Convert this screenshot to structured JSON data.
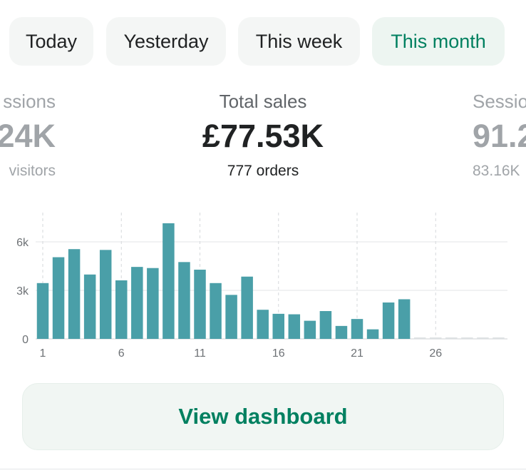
{
  "tabs": [
    {
      "label": "Today"
    },
    {
      "label": "Yesterday"
    },
    {
      "label": "This week"
    },
    {
      "label": "This month",
      "active": true
    }
  ],
  "metrics": {
    "left": {
      "label": "ssions",
      "value": "24K",
      "sub": "visitors"
    },
    "main": {
      "label": "Total sales",
      "value": "£77.53K",
      "sub": "777 orders"
    },
    "right": {
      "label": "Sessio",
      "value": "91.2",
      "sub": "83.16K"
    }
  },
  "colors": {
    "accent": "#008060",
    "bar": "#4a9fa8",
    "future": "#dde1e3"
  },
  "chart_data": {
    "type": "bar",
    "categories": [
      1,
      2,
      3,
      4,
      5,
      6,
      7,
      8,
      9,
      10,
      11,
      12,
      13,
      14,
      15,
      16,
      17,
      18,
      19,
      20,
      21,
      22,
      23,
      24,
      25,
      26,
      27,
      28,
      29,
      30
    ],
    "values": [
      3450,
      5050,
      5550,
      3980,
      5500,
      3620,
      4450,
      4380,
      7150,
      4750,
      4280,
      3450,
      2720,
      3850,
      1800,
      1550,
      1520,
      1120,
      1720,
      800,
      1230,
      590,
      2250,
      2450,
      0,
      0,
      0,
      0,
      0,
      0
    ],
    "future_days": [
      25,
      26,
      27,
      28,
      29,
      30
    ],
    "yticks": [
      {
        "v": 0,
        "label": "0"
      },
      {
        "v": 3000,
        "label": "3k"
      },
      {
        "v": 6000,
        "label": "6k"
      }
    ],
    "xticks": [
      {
        "v": 1,
        "label": "1"
      },
      {
        "v": 6,
        "label": "6"
      },
      {
        "v": 11,
        "label": "11"
      },
      {
        "v": 16,
        "label": "16"
      },
      {
        "v": 21,
        "label": "21"
      },
      {
        "v": 26,
        "label": "26"
      }
    ],
    "ylim": [
      0,
      8000
    ],
    "grid": true
  },
  "button": {
    "label": "View dashboard"
  }
}
